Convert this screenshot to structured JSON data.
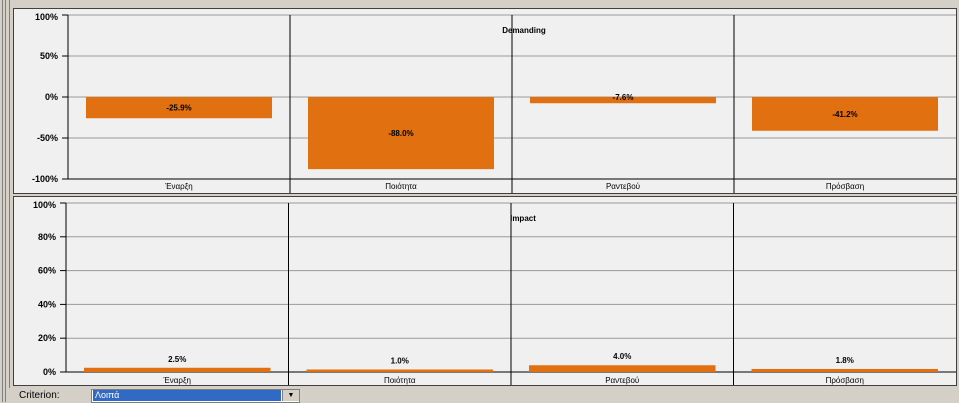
{
  "chart_data": [
    {
      "type": "bar",
      "title": "Demanding",
      "categories": [
        "Έναρξη",
        "Ποιότητα",
        "Ραντεβού",
        "Πρόσβαση"
      ],
      "values": [
        -25.9,
        -88.0,
        -7.6,
        -41.2
      ],
      "labels": [
        "-25.9%",
        "-88.0%",
        "-7.6%",
        "-41.2%"
      ],
      "yticks": [
        "100%",
        "50%",
        "0%",
        "-50%",
        "-100%"
      ],
      "ylim": [
        -100,
        100
      ],
      "grid": true,
      "bar_color": "#e07010"
    },
    {
      "type": "bar",
      "title": "Impact",
      "categories": [
        "Έναρξη",
        "Ποιότητα",
        "Ραντεβού",
        "Πρόσβαση"
      ],
      "values": [
        2.5,
        1.0,
        4.0,
        1.8
      ],
      "labels": [
        "2.5%",
        "1.0%",
        "4.0%",
        "1.8%"
      ],
      "yticks": [
        "100%",
        "80%",
        "60%",
        "40%",
        "20%",
        "0%"
      ],
      "ylim": [
        0,
        100
      ],
      "grid": true,
      "bar_color": "#e07010"
    }
  ],
  "criterion": {
    "label": "Criterion:",
    "value": "Λοιπά",
    "arrow": "▼"
  }
}
